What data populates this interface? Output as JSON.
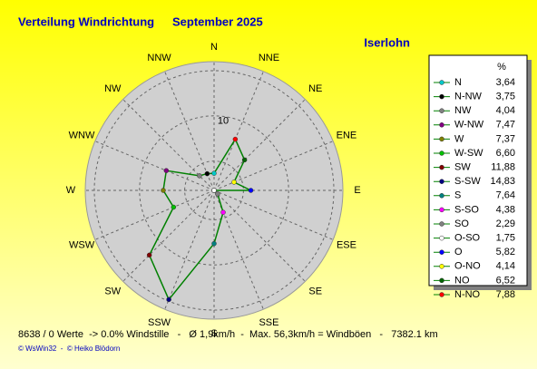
{
  "chart_data": {
    "type": "radar",
    "title": "Verteilung Windrichtung",
    "subtitle": "September 2025",
    "location": "Iserlohn",
    "axis_labels": [
      "N",
      "NNE",
      "NE",
      "ENE",
      "E",
      "ESE",
      "SE",
      "SSE",
      "S",
      "SSW",
      "SW",
      "WSW",
      "W",
      "WNW",
      "NW",
      "NNW"
    ],
    "categories": [
      "N",
      "N-NW",
      "NW",
      "W-NW",
      "W",
      "W-SW",
      "SW",
      "S-SW",
      "S",
      "S-SO",
      "SO",
      "O-SO",
      "O",
      "O-NO",
      "NO",
      "N-NO"
    ],
    "values": [
      3.64,
      3.75,
      4.04,
      7.47,
      7.37,
      6.6,
      11.88,
      14.83,
      7.64,
      4.38,
      2.29,
      1.75,
      5.82,
      4.14,
      6.52,
      7.88
    ],
    "value_labels": [
      "3,64",
      "3,75",
      "4,04",
      "7,47",
      "7,37",
      "6,60",
      "11,88",
      "14,83",
      "7,64",
      "4,38",
      "2,29",
      "1,75",
      "5,82",
      "4,14",
      "6,52",
      "7,88"
    ],
    "colors": [
      "#00c8c8",
      "#000000",
      "#808080",
      "#800080",
      "#808000",
      "#00c000",
      "#800000",
      "#000080",
      "#008080",
      "#ff00ff",
      "#808080",
      "#ffffff",
      "#0000ff",
      "#ffff00",
      "#006400",
      "#ff0000"
    ],
    "line_color": "#008000",
    "rlim": [
      1.75,
      16
    ],
    "rgrid": [
      5,
      10,
      15
    ],
    "rticks": [
      10
    ],
    "unit": "%",
    "footer": "8638 / 0 Werte  -> 0.0% Windstille   -   Ø 1,9km/h  -  Max. 56,3km/h = Windböen   -   7382.1 km",
    "credit": "© WsWin32  -  © Heiko Blödorn"
  }
}
